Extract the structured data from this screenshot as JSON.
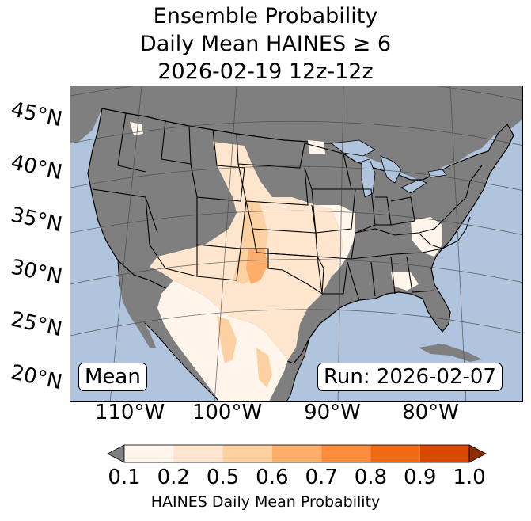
{
  "title": {
    "line1": "Ensemble Probability",
    "line2": "Daily Mean HAINES ≥ 6",
    "line3": "2026-02-19 12z-12z"
  },
  "map": {
    "lat_labels": [
      "45°N",
      "40°N",
      "35°N",
      "30°N",
      "25°N",
      "20°N"
    ],
    "lon_labels": [
      "110°W",
      "100°W",
      "90°W",
      "80°W"
    ],
    "mean_label": "Mean",
    "run_label": "Run: 2026-02-07",
    "colors": {
      "ocean": "#b0c4de",
      "land_masked": "#7f7f7f",
      "lakes": "#b0c4de"
    }
  },
  "colorbar": {
    "ticks": [
      "0.1",
      "0.2",
      "0.5",
      "0.6",
      "0.7",
      "0.8",
      "0.9",
      "1.0"
    ],
    "colors": [
      "#fff5eb",
      "#fee6ce",
      "#fdd0a2",
      "#fdae6b",
      "#fd8d3c",
      "#f16913",
      "#d94801",
      "#8c2d04"
    ],
    "under_color": "#808080",
    "label": "HAINES Daily Mean Probability"
  }
}
